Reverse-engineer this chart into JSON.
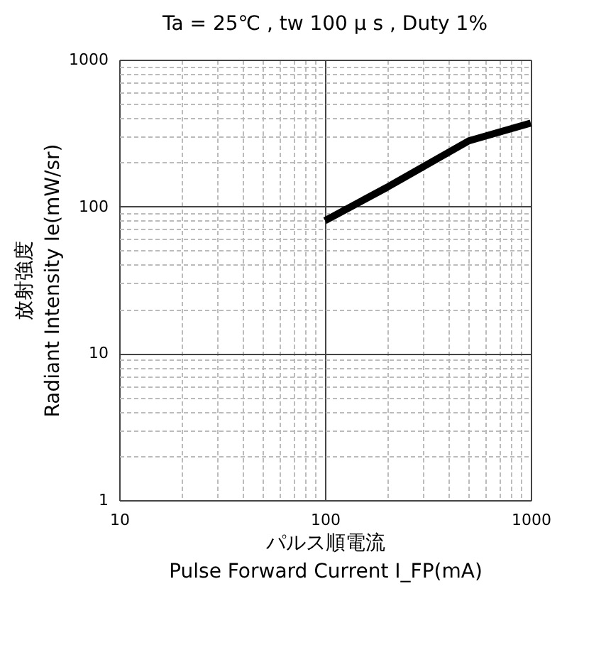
{
  "chart_data": {
    "type": "line",
    "title": "Ta = 25℃ , tw  100 μ s  ,   Duty 1%",
    "xlabel": "パルス順電流\nPulse Forward Current  I_FP(mA)",
    "ylabel": "放射強度\nRadiant Intensity  Ie(mW/sr)",
    "x": [
      100,
      200,
      500,
      1000
    ],
    "series": [
      {
        "color": "#000000",
        "values": [
          80,
          135,
          280,
          370
        ]
      }
    ],
    "log": "xy",
    "grid": true,
    "marker": "none",
    "line_style": "solid",
    "xlim": [
      10,
      1000
    ],
    "ylim": [
      1,
      1000
    ],
    "xticks": [
      10,
      {
        "value": 20,
        "label": null
      },
      {
        "value": 30,
        "label": null
      },
      {
        "value": 40,
        "label": null
      },
      {
        "value": 50,
        "label": null
      },
      {
        "value": 60,
        "label": null
      },
      {
        "value": 70,
        "label": null
      },
      {
        "value": 80,
        "label": null
      },
      {
        "value": 90,
        "label": null
      },
      100,
      {
        "value": 200,
        "label": null
      },
      {
        "value": 300,
        "label": null
      },
      {
        "value": 400,
        "label": null
      },
      {
        "value": 500,
        "label": null
      },
      {
        "value": 600,
        "label": null
      },
      {
        "value": 700,
        "label": null
      },
      {
        "value": 800,
        "label": null
      },
      {
        "value": 900,
        "label": null
      },
      1000
    ],
    "yticks": [
      1,
      {
        "value": 2,
        "label": null
      },
      {
        "value": 3,
        "label": null
      },
      {
        "value": 4,
        "label": null
      },
      {
        "value": 5,
        "label": null
      },
      {
        "value": 6,
        "label": null
      },
      {
        "value": 7,
        "label": null
      },
      {
        "value": 8,
        "label": null
      },
      {
        "value": 9,
        "label": null
      },
      10,
      {
        "value": 20,
        "label": null
      },
      {
        "value": 30,
        "label": null
      },
      {
        "value": 40,
        "label": null
      },
      {
        "value": 50,
        "label": null
      },
      {
        "value": 60,
        "label": null
      },
      {
        "value": 70,
        "label": null
      },
      {
        "value": 80,
        "label": null
      },
      {
        "value": 90,
        "label": null
      },
      100,
      {
        "value": 200,
        "label": null
      },
      {
        "value": 300,
        "label": null
      },
      {
        "value": 400,
        "label": null
      },
      {
        "value": 500,
        "label": null
      },
      {
        "value": 600,
        "label": null
      },
      {
        "value": 700,
        "label": null
      },
      {
        "value": 800,
        "label": null
      },
      {
        "value": 900,
        "label": null
      },
      1000
    ]
  }
}
